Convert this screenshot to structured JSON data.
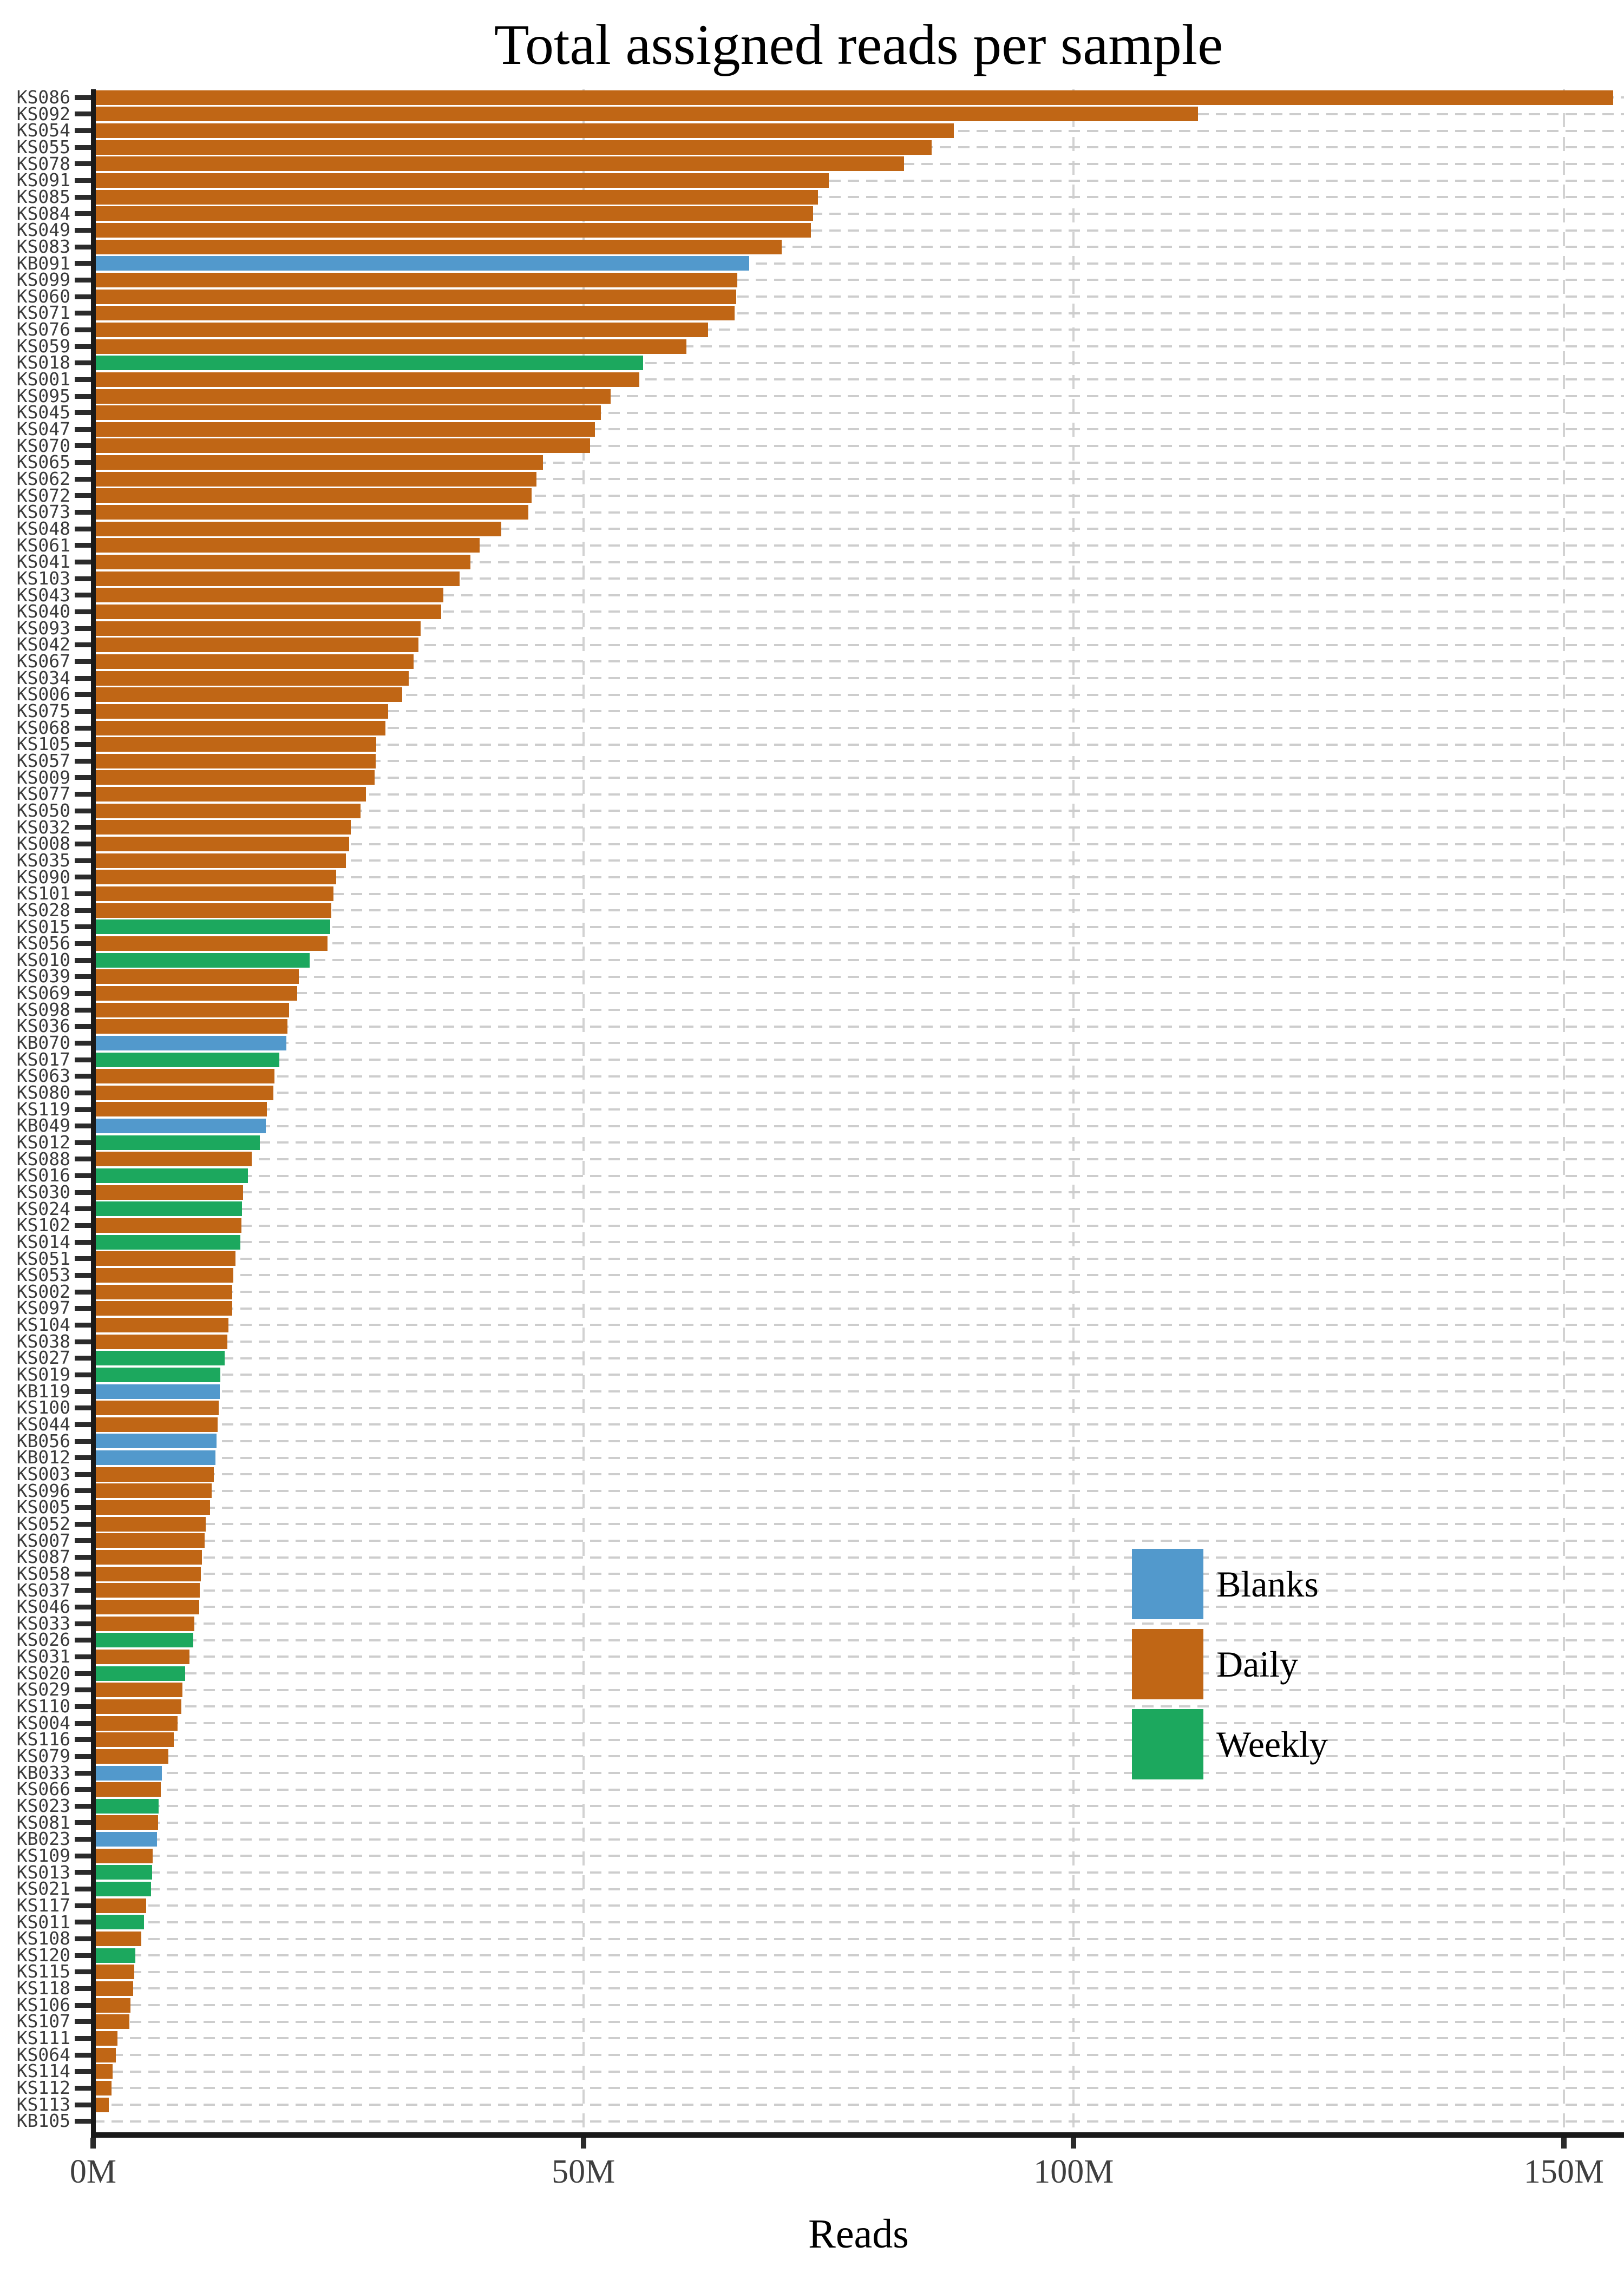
{
  "title": "Total assigned reads per sample",
  "x_axis": {
    "label": "Reads",
    "ticks": [
      "0M",
      "50M",
      "100M",
      "150M"
    ],
    "tick_values_m": [
      0,
      50,
      100,
      150
    ]
  },
  "legend": {
    "items": [
      {
        "label": "Blanks",
        "color": "#5299cc"
      },
      {
        "label": "Daily",
        "color": "#c06615"
      },
      {
        "label": "Weekly",
        "color": "#1ca85e"
      }
    ]
  },
  "colors": {
    "blanks": "#5299cc",
    "daily": "#c06615",
    "weekly": "#1ca85e",
    "axis": "#1a1a1a",
    "tick": "#2b2b2b",
    "y_label": "#3c3c3c",
    "x_tick_label": "#3f3f3f",
    "row_dash": "#cdcdcd",
    "vgrid": "#d2d2d2"
  },
  "chart_data": {
    "type": "bar",
    "orientation": "horizontal",
    "title": "Total assigned reads per sample",
    "xlabel": "Reads",
    "ylabel": "",
    "units": "millions of reads",
    "xlim_m": [
      0,
      156
    ],
    "x_tick_labels": [
      "0M",
      "50M",
      "100M",
      "150M"
    ],
    "x_tick_values_m": [
      0,
      50,
      100,
      150
    ],
    "grid": "dashed horizontal line per sample row; dashed vertical gridlines at 50M/100M/150M",
    "legend_position": "center-right",
    "note": "top bar (KS086) reaches the right edge of the plot (~155M); KB105 bar is nearly zero",
    "groups": [
      {
        "name": "Blanks",
        "color": "#5299cc"
      },
      {
        "name": "Daily",
        "color": "#c06615"
      },
      {
        "name": "Weekly",
        "color": "#1ca85e"
      }
    ],
    "samples": [
      {
        "id": "KS086",
        "reads_m": 155.0,
        "group": "Daily"
      },
      {
        "id": "KS092",
        "reads_m": 112.7,
        "group": "Daily"
      },
      {
        "id": "KS054",
        "reads_m": 87.8,
        "group": "Daily"
      },
      {
        "id": "KS055",
        "reads_m": 85.5,
        "group": "Daily"
      },
      {
        "id": "KS078",
        "reads_m": 82.7,
        "group": "Daily"
      },
      {
        "id": "KS091",
        "reads_m": 75.0,
        "group": "Daily"
      },
      {
        "id": "KS085",
        "reads_m": 73.9,
        "group": "Daily"
      },
      {
        "id": "KS084",
        "reads_m": 73.4,
        "group": "Daily"
      },
      {
        "id": "KS049",
        "reads_m": 73.2,
        "group": "Daily"
      },
      {
        "id": "KS083",
        "reads_m": 70.2,
        "group": "Daily"
      },
      {
        "id": "KB091",
        "reads_m": 66.9,
        "group": "Blanks"
      },
      {
        "id": "KS099",
        "reads_m": 65.7,
        "group": "Daily"
      },
      {
        "id": "KS060",
        "reads_m": 65.6,
        "group": "Daily"
      },
      {
        "id": "KS071",
        "reads_m": 65.4,
        "group": "Daily"
      },
      {
        "id": "KS076",
        "reads_m": 62.7,
        "group": "Daily"
      },
      {
        "id": "KS059",
        "reads_m": 60.5,
        "group": "Daily"
      },
      {
        "id": "KS018",
        "reads_m": 56.1,
        "group": "Weekly"
      },
      {
        "id": "KS001",
        "reads_m": 55.7,
        "group": "Daily"
      },
      {
        "id": "KS095",
        "reads_m": 52.8,
        "group": "Daily"
      },
      {
        "id": "KS045",
        "reads_m": 51.8,
        "group": "Daily"
      },
      {
        "id": "KS047",
        "reads_m": 51.2,
        "group": "Daily"
      },
      {
        "id": "KS070",
        "reads_m": 50.7,
        "group": "Daily"
      },
      {
        "id": "KS065",
        "reads_m": 45.9,
        "group": "Daily"
      },
      {
        "id": "KS062",
        "reads_m": 45.2,
        "group": "Daily"
      },
      {
        "id": "KS072",
        "reads_m": 44.7,
        "group": "Daily"
      },
      {
        "id": "KS073",
        "reads_m": 44.4,
        "group": "Daily"
      },
      {
        "id": "KS048",
        "reads_m": 41.6,
        "group": "Daily"
      },
      {
        "id": "KS061",
        "reads_m": 39.4,
        "group": "Daily"
      },
      {
        "id": "KS041",
        "reads_m": 38.5,
        "group": "Daily"
      },
      {
        "id": "KS103",
        "reads_m": 37.4,
        "group": "Daily"
      },
      {
        "id": "KS043",
        "reads_m": 35.7,
        "group": "Daily"
      },
      {
        "id": "KS040",
        "reads_m": 35.5,
        "group": "Daily"
      },
      {
        "id": "KS093",
        "reads_m": 33.4,
        "group": "Daily"
      },
      {
        "id": "KS042",
        "reads_m": 33.2,
        "group": "Daily"
      },
      {
        "id": "KS067",
        "reads_m": 32.7,
        "group": "Daily"
      },
      {
        "id": "KS034",
        "reads_m": 32.2,
        "group": "Daily"
      },
      {
        "id": "KS006",
        "reads_m": 31.5,
        "group": "Daily"
      },
      {
        "id": "KS075",
        "reads_m": 30.1,
        "group": "Daily"
      },
      {
        "id": "KS068",
        "reads_m": 29.8,
        "group": "Daily"
      },
      {
        "id": "KS105",
        "reads_m": 28.9,
        "group": "Daily"
      },
      {
        "id": "KS057",
        "reads_m": 28.8,
        "group": "Daily"
      },
      {
        "id": "KS009",
        "reads_m": 28.7,
        "group": "Daily"
      },
      {
        "id": "KS077",
        "reads_m": 27.8,
        "group": "Daily"
      },
      {
        "id": "KS050",
        "reads_m": 27.3,
        "group": "Daily"
      },
      {
        "id": "KS032",
        "reads_m": 26.3,
        "group": "Daily"
      },
      {
        "id": "KS008",
        "reads_m": 26.1,
        "group": "Daily"
      },
      {
        "id": "KS035",
        "reads_m": 25.8,
        "group": "Daily"
      },
      {
        "id": "KS090",
        "reads_m": 24.8,
        "group": "Daily"
      },
      {
        "id": "KS101",
        "reads_m": 24.5,
        "group": "Daily"
      },
      {
        "id": "KS028",
        "reads_m": 24.3,
        "group": "Daily"
      },
      {
        "id": "KS015",
        "reads_m": 24.2,
        "group": "Weekly"
      },
      {
        "id": "KS056",
        "reads_m": 23.9,
        "group": "Daily"
      },
      {
        "id": "KS010",
        "reads_m": 22.1,
        "group": "Weekly"
      },
      {
        "id": "KS039",
        "reads_m": 21.0,
        "group": "Daily"
      },
      {
        "id": "KS069",
        "reads_m": 20.8,
        "group": "Daily"
      },
      {
        "id": "KS098",
        "reads_m": 20.0,
        "group": "Daily"
      },
      {
        "id": "KS036",
        "reads_m": 19.8,
        "group": "Daily"
      },
      {
        "id": "KB070",
        "reads_m": 19.7,
        "group": "Blanks"
      },
      {
        "id": "KS017",
        "reads_m": 19.0,
        "group": "Weekly"
      },
      {
        "id": "KS063",
        "reads_m": 18.5,
        "group": "Daily"
      },
      {
        "id": "KS080",
        "reads_m": 18.4,
        "group": "Daily"
      },
      {
        "id": "KS119",
        "reads_m": 17.7,
        "group": "Daily"
      },
      {
        "id": "KB049",
        "reads_m": 17.6,
        "group": "Blanks"
      },
      {
        "id": "KS012",
        "reads_m": 17.0,
        "group": "Weekly"
      },
      {
        "id": "KS088",
        "reads_m": 16.2,
        "group": "Daily"
      },
      {
        "id": "KS016",
        "reads_m": 15.8,
        "group": "Weekly"
      },
      {
        "id": "KS030",
        "reads_m": 15.3,
        "group": "Daily"
      },
      {
        "id": "KS024",
        "reads_m": 15.2,
        "group": "Weekly"
      },
      {
        "id": "KS102",
        "reads_m": 15.1,
        "group": "Daily"
      },
      {
        "id": "KS014",
        "reads_m": 15.0,
        "group": "Weekly"
      },
      {
        "id": "KS051",
        "reads_m": 14.5,
        "group": "Daily"
      },
      {
        "id": "KS053",
        "reads_m": 14.3,
        "group": "Daily"
      },
      {
        "id": "KS002",
        "reads_m": 14.2,
        "group": "Daily"
      },
      {
        "id": "KS097",
        "reads_m": 14.2,
        "group": "Daily"
      },
      {
        "id": "KS104",
        "reads_m": 13.8,
        "group": "Daily"
      },
      {
        "id": "KS038",
        "reads_m": 13.7,
        "group": "Daily"
      },
      {
        "id": "KS027",
        "reads_m": 13.4,
        "group": "Weekly"
      },
      {
        "id": "KS019",
        "reads_m": 13.0,
        "group": "Weekly"
      },
      {
        "id": "KB119",
        "reads_m": 12.9,
        "group": "Blanks"
      },
      {
        "id": "KS100",
        "reads_m": 12.8,
        "group": "Daily"
      },
      {
        "id": "KS044",
        "reads_m": 12.7,
        "group": "Daily"
      },
      {
        "id": "KB056",
        "reads_m": 12.6,
        "group": "Blanks"
      },
      {
        "id": "KB012",
        "reads_m": 12.5,
        "group": "Blanks"
      },
      {
        "id": "KS003",
        "reads_m": 12.3,
        "group": "Daily"
      },
      {
        "id": "KS096",
        "reads_m": 12.1,
        "group": "Daily"
      },
      {
        "id": "KS005",
        "reads_m": 11.9,
        "group": "Daily"
      },
      {
        "id": "KS052",
        "reads_m": 11.5,
        "group": "Daily"
      },
      {
        "id": "KS007",
        "reads_m": 11.4,
        "group": "Daily"
      },
      {
        "id": "KS087",
        "reads_m": 11.1,
        "group": "Daily"
      },
      {
        "id": "KS058",
        "reads_m": 11.0,
        "group": "Daily"
      },
      {
        "id": "KS037",
        "reads_m": 10.9,
        "group": "Daily"
      },
      {
        "id": "KS046",
        "reads_m": 10.8,
        "group": "Daily"
      },
      {
        "id": "KS033",
        "reads_m": 10.3,
        "group": "Daily"
      },
      {
        "id": "KS026",
        "reads_m": 10.2,
        "group": "Weekly"
      },
      {
        "id": "KS031",
        "reads_m": 9.8,
        "group": "Daily"
      },
      {
        "id": "KS020",
        "reads_m": 9.4,
        "group": "Weekly"
      },
      {
        "id": "KS029",
        "reads_m": 9.1,
        "group": "Daily"
      },
      {
        "id": "KS110",
        "reads_m": 9.0,
        "group": "Daily"
      },
      {
        "id": "KS004",
        "reads_m": 8.6,
        "group": "Daily"
      },
      {
        "id": "KS116",
        "reads_m": 8.2,
        "group": "Daily"
      },
      {
        "id": "KS079",
        "reads_m": 7.7,
        "group": "Daily"
      },
      {
        "id": "KB033",
        "reads_m": 7.0,
        "group": "Blanks"
      },
      {
        "id": "KS066",
        "reads_m": 6.9,
        "group": "Daily"
      },
      {
        "id": "KS023",
        "reads_m": 6.7,
        "group": "Weekly"
      },
      {
        "id": "KS081",
        "reads_m": 6.6,
        "group": "Daily"
      },
      {
        "id": "KB023",
        "reads_m": 6.5,
        "group": "Blanks"
      },
      {
        "id": "KS109",
        "reads_m": 6.1,
        "group": "Daily"
      },
      {
        "id": "KS013",
        "reads_m": 6.0,
        "group": "Weekly"
      },
      {
        "id": "KS021",
        "reads_m": 5.9,
        "group": "Weekly"
      },
      {
        "id": "KS117",
        "reads_m": 5.4,
        "group": "Daily"
      },
      {
        "id": "KS011",
        "reads_m": 5.2,
        "group": "Weekly"
      },
      {
        "id": "KS108",
        "reads_m": 4.9,
        "group": "Daily"
      },
      {
        "id": "KS120",
        "reads_m": 4.3,
        "group": "Weekly"
      },
      {
        "id": "KS115",
        "reads_m": 4.2,
        "group": "Daily"
      },
      {
        "id": "KS118",
        "reads_m": 4.1,
        "group": "Daily"
      },
      {
        "id": "KS106",
        "reads_m": 3.8,
        "group": "Daily"
      },
      {
        "id": "KS107",
        "reads_m": 3.7,
        "group": "Daily"
      },
      {
        "id": "KS111",
        "reads_m": 2.5,
        "group": "Daily"
      },
      {
        "id": "KS064",
        "reads_m": 2.3,
        "group": "Daily"
      },
      {
        "id": "KS114",
        "reads_m": 2.0,
        "group": "Daily"
      },
      {
        "id": "KS112",
        "reads_m": 1.9,
        "group": "Daily"
      },
      {
        "id": "KS113",
        "reads_m": 1.6,
        "group": "Daily"
      },
      {
        "id": "KB105",
        "reads_m": 0.2,
        "group": "Blanks"
      }
    ]
  }
}
